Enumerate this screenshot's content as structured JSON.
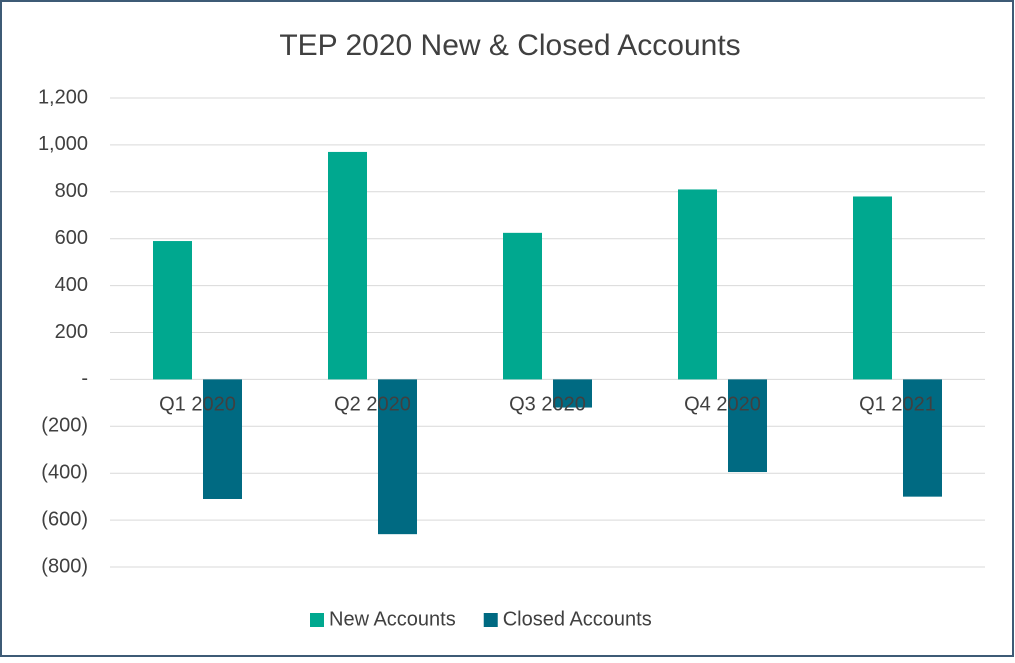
{
  "chart_data": {
    "type": "bar",
    "title": "TEP 2020 New & Closed Accounts",
    "categories": [
      "Q1 2020",
      "Q2 2020",
      "Q3 2020",
      "Q4 2020",
      "Q1 2021"
    ],
    "series": [
      {
        "name": "New Accounts",
        "color": "#00a88f",
        "values": [
          590,
          970,
          625,
          810,
          780
        ]
      },
      {
        "name": "Closed Accounts",
        "color": "#006a82",
        "values": [
          -510,
          -660,
          -120,
          -395,
          -500
        ]
      }
    ],
    "ylim": [
      -800,
      1200
    ],
    "yticks": [
      {
        "value": -800,
        "label": "(800)"
      },
      {
        "value": -600,
        "label": "(600)"
      },
      {
        "value": -400,
        "label": "(400)"
      },
      {
        "value": -200,
        "label": "(200)"
      },
      {
        "value": 0,
        "label": "-"
      },
      200,
      400,
      600,
      800,
      {
        "value": 1000,
        "label": "1,000"
      },
      {
        "value": 1200,
        "label": "1,200"
      }
    ],
    "grid": true,
    "legend": "bottom"
  }
}
